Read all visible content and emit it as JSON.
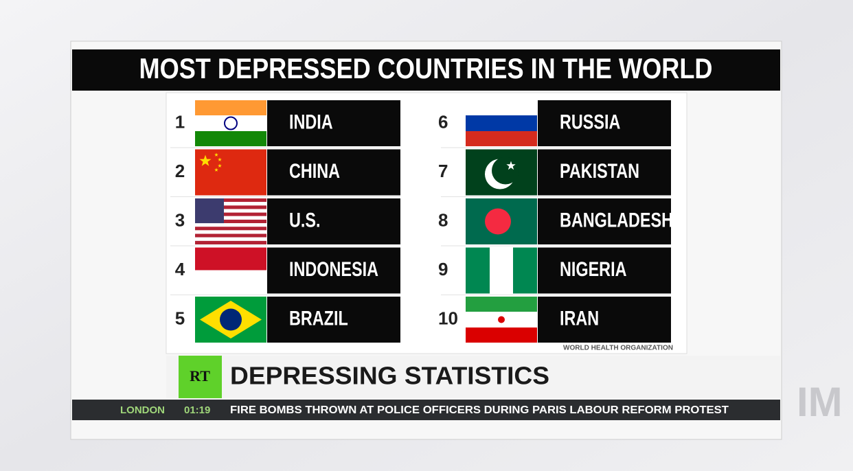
{
  "title": "MOST DEPRESSED COUNTRIES IN THE WORLD",
  "rankings": [
    {
      "rank": 1,
      "country": "INDIA"
    },
    {
      "rank": 2,
      "country": "CHINA"
    },
    {
      "rank": 3,
      "country": "U.S."
    },
    {
      "rank": 4,
      "country": "INDONESIA"
    },
    {
      "rank": 5,
      "country": "BRAZIL"
    },
    {
      "rank": 6,
      "country": "RUSSIA"
    },
    {
      "rank": 7,
      "country": "PAKISTAN"
    },
    {
      "rank": 8,
      "country": "BANGLADESH"
    },
    {
      "rank": 9,
      "country": "NIGERIA"
    },
    {
      "rank": 10,
      "country": "IRAN"
    }
  ],
  "source": "WORLD HEALTH ORGANIZATION",
  "channel_logo": "RT",
  "headline": "DEPRESSING STATISTICS",
  "ticker": {
    "location": "LONDON",
    "time": "01:19",
    "text": "FIRE BOMBS THROWN AT POLICE OFFICERS DURING PARIS LABOUR REFORM PROTEST"
  },
  "background_text": "IM"
}
